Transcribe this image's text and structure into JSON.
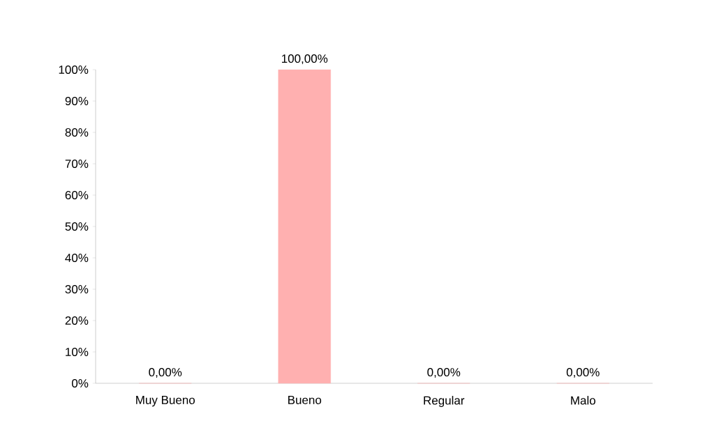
{
  "chart_data": {
    "type": "bar",
    "categories": [
      "Muy Bueno",
      "Bueno",
      "Regular",
      "Malo"
    ],
    "values": [
      0,
      100,
      0,
      0
    ],
    "value_labels": [
      "0,00%",
      "100,00%",
      "0,00%",
      "0,00%"
    ],
    "color": "#ffb0b0",
    "ylim": [
      0,
      100
    ],
    "yticks": [
      {
        "value": 0,
        "label": "0%"
      },
      {
        "value": 10,
        "label": "10%"
      },
      {
        "value": 20,
        "label": "20%"
      },
      {
        "value": 30,
        "label": "30%"
      },
      {
        "value": 40,
        "label": "40%"
      },
      {
        "value": 50,
        "label": "50%"
      },
      {
        "value": 60,
        "label": "60%"
      },
      {
        "value": 70,
        "label": "70%"
      },
      {
        "value": 80,
        "label": "80%"
      },
      {
        "value": 90,
        "label": "90%"
      },
      {
        "value": 100,
        "label": "100%"
      }
    ]
  }
}
